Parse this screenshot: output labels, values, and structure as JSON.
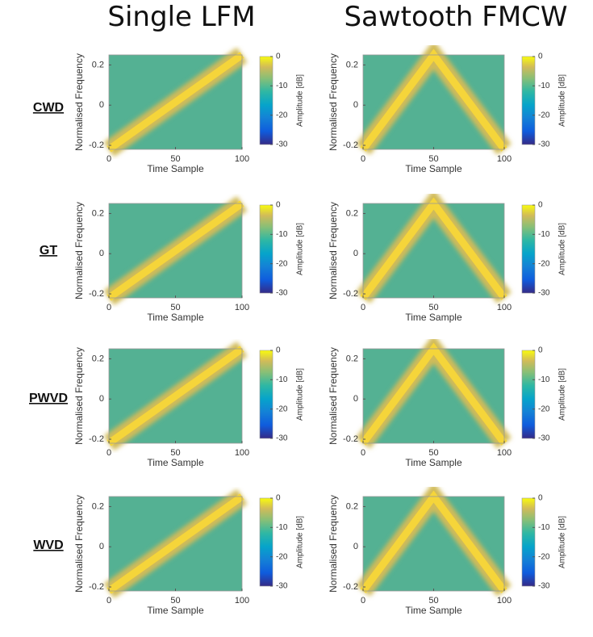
{
  "columns": [
    "Single LFM",
    "Sawtooth FMCW"
  ],
  "rows": [
    "CWD",
    "GT",
    "PWVD",
    "WVD"
  ],
  "chart_data": [
    {
      "type": "heatmap",
      "xlabel": "Time Sample",
      "ylabel": "Normalised Frequency",
      "xlim": [
        0,
        100
      ],
      "ylim": [
        -0.22,
        0.25
      ],
      "xticks": [
        0,
        50,
        100
      ],
      "yticks": [
        -0.2,
        0,
        0.2
      ],
      "clim": [
        -30,
        0
      ],
      "cticks": [
        0,
        -10,
        -20,
        -30
      ],
      "colorbar_label": "Amplitude [dB]"
    },
    {
      "type": "heatmap",
      "xlabel": "Time Sample",
      "ylabel": "Normalised Frequency",
      "xlim": [
        0,
        100
      ],
      "ylim": [
        -0.22,
        0.25
      ],
      "xticks": [
        0,
        50,
        100
      ],
      "yticks": [
        -0.2,
        0,
        0.2
      ],
      "clim": [
        -30,
        0
      ],
      "cticks": [
        0,
        -10,
        -20,
        -30
      ],
      "colorbar_label": "Amplitude [dB]"
    },
    {
      "type": "heatmap",
      "xlabel": "Time Sample",
      "ylabel": "Normalised Frequency",
      "xlim": [
        0,
        100
      ],
      "ylim": [
        -0.22,
        0.25
      ],
      "xticks": [
        0,
        50,
        100
      ],
      "yticks": [
        -0.2,
        0,
        0.2
      ],
      "clim": [
        -30,
        0
      ],
      "cticks": [
        0,
        -10,
        -20,
        -30
      ],
      "colorbar_label": "Amplitude [dB]"
    },
    {
      "type": "heatmap",
      "xlabel": "Time Sample",
      "ylabel": "Normalised Frequency",
      "xlim": [
        0,
        100
      ],
      "ylim": [
        -0.22,
        0.25
      ],
      "xticks": [
        0,
        50,
        100
      ],
      "yticks": [
        -0.2,
        0,
        0.2
      ],
      "clim": [
        -30,
        0
      ],
      "cticks": [
        0,
        -10,
        -20,
        -30
      ],
      "colorbar_label": "Amplitude [dB]"
    },
    {
      "type": "heatmap",
      "xlabel": "Time Sample",
      "ylabel": "Normalised Frequency",
      "xlim": [
        0,
        100
      ],
      "ylim": [
        -0.22,
        0.25
      ],
      "xticks": [
        0,
        50,
        100
      ],
      "yticks": [
        -0.2,
        0,
        0.2
      ],
      "clim": [
        -30,
        0
      ],
      "cticks": [
        0,
        -10,
        -20,
        -30
      ],
      "colorbar_label": "Amplitude [dB]"
    },
    {
      "type": "heatmap",
      "xlabel": "Time Sample",
      "ylabel": "Normalised Frequency",
      "xlim": [
        0,
        100
      ],
      "ylim": [
        -0.22,
        0.25
      ],
      "xticks": [
        0,
        50,
        100
      ],
      "yticks": [
        -0.2,
        0,
        0.2
      ],
      "clim": [
        -30,
        0
      ],
      "cticks": [
        0,
        -10,
        -20,
        -30
      ],
      "colorbar_label": "Amplitude [dB]"
    },
    {
      "type": "heatmap",
      "xlabel": "Time Sample",
      "ylabel": "Normalised Frequency",
      "xlim": [
        0,
        100
      ],
      "ylim": [
        -0.22,
        0.25
      ],
      "xticks": [
        0,
        50,
        100
      ],
      "yticks": [
        -0.2,
        0,
        0.2
      ],
      "clim": [
        -30,
        0
      ],
      "cticks": [
        0,
        -10,
        -20,
        -30
      ],
      "colorbar_label": "Amplitude [dB]"
    },
    {
      "type": "heatmap",
      "xlabel": "Time Sample",
      "ylabel": "Normalised Frequency",
      "xlim": [
        0,
        100
      ],
      "ylim": [
        -0.22,
        0.25
      ],
      "xticks": [
        0,
        50,
        100
      ],
      "yticks": [
        -0.2,
        0,
        0.2
      ],
      "clim": [
        -30,
        0
      ],
      "cticks": [
        0,
        -10,
        -20,
        -30
      ],
      "colorbar_label": "Amplitude [dB]"
    }
  ]
}
